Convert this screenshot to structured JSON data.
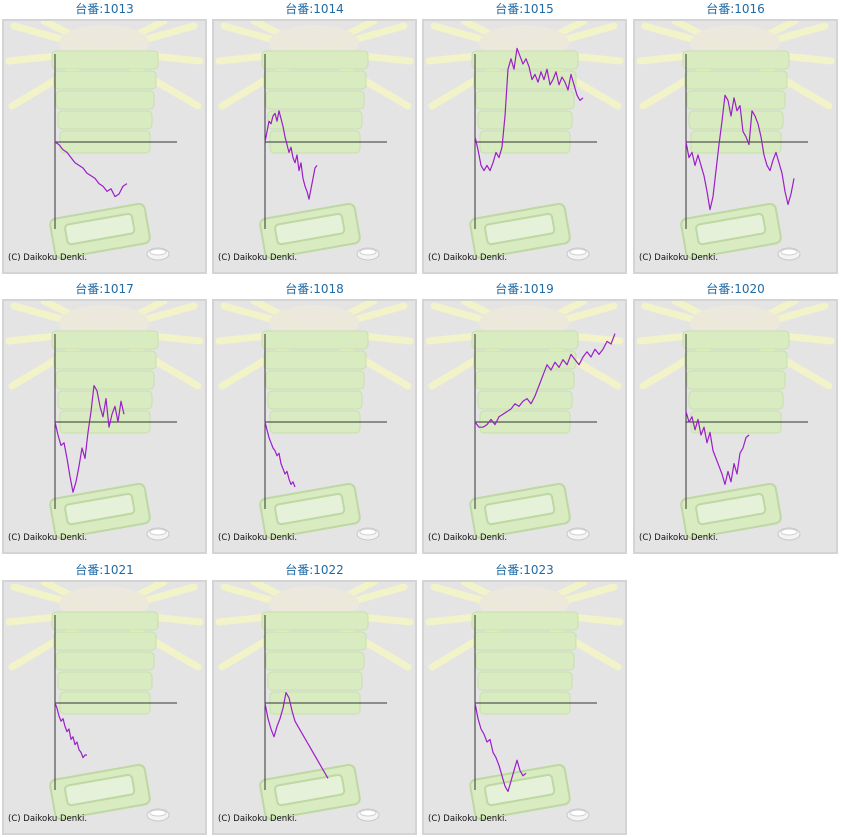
{
  "copyright": "(C) Daikoku Denki.",
  "colors": {
    "title": "#1f6aa5",
    "line": "#9b1fc8",
    "axis": "#333333",
    "panel_bg": "#e4e4e4"
  },
  "chart_data": [
    {
      "type": "line",
      "title": "台番:1013",
      "x": [
        0,
        4,
        8,
        12,
        16,
        20,
        24,
        28,
        32,
        36,
        40,
        44,
        48,
        52,
        56,
        60,
        64,
        68,
        72
      ],
      "y": [
        0,
        -1,
        -3,
        -4,
        -6,
        -8,
        -9,
        -10,
        -12,
        -13,
        -14,
        -16,
        -17,
        -19,
        -18,
        -21,
        -20,
        -17,
        -16
      ]
    },
    {
      "type": "line",
      "title": "台番:1014",
      "x": [
        0,
        2,
        4,
        6,
        8,
        10,
        12,
        14,
        16,
        18,
        20,
        22,
        24,
        26,
        28,
        30,
        32,
        34,
        36,
        38,
        40,
        42,
        44,
        46,
        48,
        50,
        52
      ],
      "y": [
        0,
        4,
        8,
        7,
        10,
        11,
        8,
        12,
        9,
        6,
        2,
        -1,
        -4,
        -2,
        -6,
        -8,
        -5,
        -11,
        -8,
        -14,
        -17,
        -19,
        -22,
        -18,
        -14,
        -10,
        -9
      ]
    },
    {
      "type": "line",
      "title": "台番:1015",
      "x": [
        0,
        3,
        6,
        9,
        12,
        15,
        18,
        21,
        24,
        27,
        30,
        33,
        36,
        39,
        42,
        45,
        48,
        51,
        54,
        57,
        60,
        63,
        66,
        69,
        72,
        75,
        78,
        81,
        84,
        87,
        90,
        93,
        96,
        99,
        102,
        105,
        108
      ],
      "y": [
        2,
        -3,
        -9,
        -11,
        -9,
        -11,
        -8,
        -4,
        -6,
        -2,
        10,
        28,
        32,
        28,
        36,
        33,
        30,
        32,
        29,
        24,
        26,
        23,
        27,
        24,
        28,
        22,
        24,
        27,
        22,
        25,
        23,
        20,
        26,
        22,
        18,
        16,
        17
      ]
    },
    {
      "type": "line",
      "title": "台番:1016",
      "x": [
        0,
        3,
        6,
        9,
        12,
        15,
        18,
        21,
        24,
        27,
        30,
        33,
        36,
        39,
        42,
        45,
        48,
        51,
        54,
        57,
        60,
        63,
        66,
        69,
        72,
        75,
        78,
        81,
        84,
        87,
        90,
        93,
        96,
        99,
        102,
        105,
        108
      ],
      "y": [
        0,
        -6,
        -4,
        -9,
        -5,
        -9,
        -13,
        -19,
        -26,
        -21,
        -11,
        -1,
        8,
        18,
        16,
        10,
        17,
        12,
        14,
        4,
        2,
        -1,
        12,
        10,
        7,
        2,
        -5,
        -9,
        -11,
        -7,
        -4,
        -8,
        -12,
        -19,
        -24,
        -20,
        -14
      ]
    },
    {
      "type": "line",
      "title": "台番:1017",
      "x": [
        0,
        3,
        6,
        9,
        12,
        15,
        18,
        21,
        24,
        27,
        30,
        33,
        36,
        39,
        42,
        45,
        48,
        51,
        54,
        57,
        60,
        63,
        66,
        69
      ],
      "y": [
        0,
        -5,
        -9,
        -8,
        -14,
        -21,
        -27,
        -23,
        -17,
        -10,
        -14,
        -4,
        4,
        14,
        12,
        6,
        2,
        9,
        -2,
        3,
        6,
        0,
        8,
        3
      ]
    },
    {
      "type": "line",
      "title": "台番:1018",
      "x": [
        0,
        2,
        4,
        6,
        8,
        10,
        12,
        14,
        16,
        18,
        20,
        22,
        24,
        26,
        28,
        30
      ],
      "y": [
        0,
        -3,
        -6,
        -8,
        -10,
        -11,
        -13,
        -12,
        -16,
        -18,
        -20,
        -19,
        -22,
        -24,
        -23,
        -25
      ]
    },
    {
      "type": "line",
      "title": "台番:1019",
      "x": [
        0,
        4,
        8,
        12,
        16,
        20,
        24,
        28,
        32,
        36,
        40,
        44,
        48,
        52,
        56,
        60,
        64,
        68,
        72,
        76,
        80,
        84,
        88,
        92,
        96,
        100,
        104,
        108,
        112,
        116,
        120,
        124,
        128,
        132,
        136,
        140
      ],
      "y": [
        0,
        -2,
        -2,
        -1,
        1,
        -1,
        2,
        3,
        4,
        5,
        7,
        6,
        8,
        9,
        7,
        10,
        14,
        18,
        22,
        20,
        23,
        21,
        24,
        22,
        26,
        24,
        22,
        25,
        27,
        25,
        28,
        26,
        28,
        31,
        30,
        34
      ]
    },
    {
      "type": "line",
      "title": "台番:1020",
      "x": [
        0,
        3,
        6,
        9,
        12,
        15,
        18,
        21,
        24,
        27,
        30,
        33,
        36,
        39,
        42,
        45,
        48,
        51,
        54,
        57,
        60,
        63
      ],
      "y": [
        4,
        0,
        2,
        -3,
        1,
        -5,
        -2,
        -8,
        -4,
        -11,
        -14,
        -17,
        -20,
        -24,
        -19,
        -23,
        -16,
        -20,
        -12,
        -10,
        -6,
        -5
      ]
    },
    {
      "type": "line",
      "title": "台番:1021",
      "x": [
        0,
        2,
        4,
        6,
        8,
        10,
        12,
        14,
        16,
        18,
        20,
        22,
        24,
        26,
        28,
        30,
        32
      ],
      "y": [
        0,
        -2,
        -5,
        -7,
        -6,
        -9,
        -11,
        -10,
        -14,
        -13,
        -16,
        -15,
        -18,
        -19,
        -21,
        -20,
        -20
      ]
    },
    {
      "type": "line",
      "title": "台番:1022",
      "x": [
        0,
        3,
        6,
        9,
        12,
        15,
        18,
        21,
        24,
        27,
        30,
        33,
        36,
        39,
        42,
        45,
        48,
        51,
        54,
        57,
        60,
        63
      ],
      "y": [
        0,
        -6,
        -10,
        -13,
        -9,
        -6,
        -2,
        4,
        2,
        -3,
        -7,
        -9,
        -11,
        -13,
        -15,
        -17,
        -19,
        -21,
        -23,
        -25,
        -27,
        -29
      ]
    },
    {
      "type": "line",
      "title": "台番:1023",
      "x": [
        0,
        3,
        6,
        9,
        12,
        15,
        18,
        21,
        24,
        27,
        30,
        33,
        36,
        39,
        42,
        45,
        48,
        51
      ],
      "y": [
        0,
        -6,
        -10,
        -12,
        -15,
        -14,
        -19,
        -21,
        -24,
        -28,
        -32,
        -34,
        -30,
        -26,
        -22,
        -26,
        -28,
        -27
      ]
    }
  ]
}
